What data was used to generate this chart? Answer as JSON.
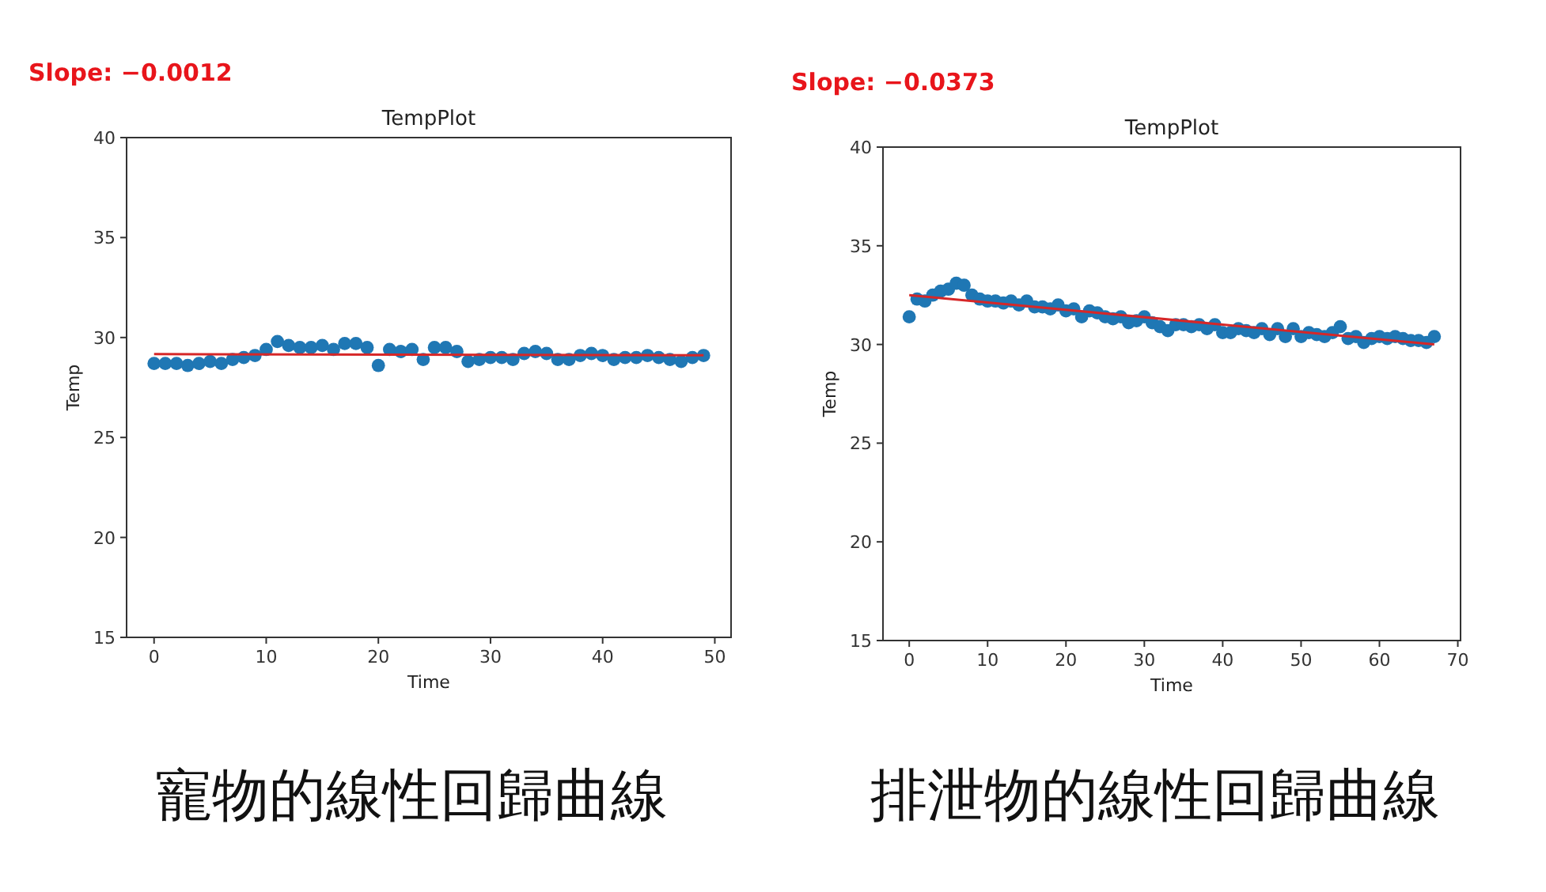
{
  "chart_data": [
    {
      "type": "scatter",
      "title": "TempPlot",
      "xlabel": "Time",
      "ylabel": "Temp",
      "annotations": [
        "Slope: −0.0012",
        "寵物的線性回歸曲線"
      ],
      "xlim": [
        -2.45,
        51.45
      ],
      "xticks": [
        0,
        10,
        20,
        30,
        40,
        50
      ],
      "ylim": [
        15,
        40
      ],
      "yticks": [
        15,
        20,
        25,
        30,
        35,
        40
      ],
      "x": [
        0,
        1,
        2,
        3,
        4,
        5,
        6,
        7,
        8,
        9,
        10,
        11,
        12,
        13,
        14,
        15,
        16,
        17,
        18,
        19,
        20,
        21,
        22,
        23,
        24,
        25,
        26,
        27,
        28,
        29,
        30,
        31,
        32,
        33,
        34,
        35,
        36,
        37,
        38,
        39,
        40,
        41,
        42,
        43,
        44,
        45,
        46,
        47,
        48,
        49
      ],
      "series": [
        {
          "marker": "circle",
          "color": "#1f77b4",
          "values": [
            28.7,
            28.7,
            28.7,
            28.6,
            28.7,
            28.8,
            28.7,
            28.9,
            29.0,
            29.1,
            29.4,
            29.8,
            29.6,
            29.5,
            29.5,
            29.6,
            29.4,
            29.7,
            29.7,
            29.5,
            28.6,
            29.4,
            29.3,
            29.4,
            28.9,
            29.5,
            29.5,
            29.3,
            28.8,
            28.9,
            29.0,
            29.0,
            28.9,
            29.2,
            29.3,
            29.2,
            28.9,
            28.9,
            29.1,
            29.2,
            29.1,
            28.9,
            29.0,
            29.0,
            29.1,
            29.0,
            28.9,
            28.8,
            29.0,
            29.1
          ]
        },
        {
          "type": "line",
          "color": "#d62728",
          "x": [
            0,
            49
          ],
          "values": [
            29.17,
            29.11
          ]
        }
      ]
    },
    {
      "type": "scatter",
      "title": "TempPlot",
      "xlabel": "Time",
      "ylabel": "Temp",
      "annotations": [
        "Slope: −0.0373",
        "排泄物的線性回歸曲線"
      ],
      "xlim": [
        -3.35,
        70.35
      ],
      "xticks": [
        0,
        10,
        20,
        30,
        40,
        50,
        60,
        70
      ],
      "ylim": [
        15,
        40
      ],
      "yticks": [
        15,
        20,
        25,
        30,
        35,
        40
      ],
      "x": [
        0,
        1,
        2,
        3,
        4,
        5,
        6,
        7,
        8,
        9,
        10,
        11,
        12,
        13,
        14,
        15,
        16,
        17,
        18,
        19,
        20,
        21,
        22,
        23,
        24,
        25,
        26,
        27,
        28,
        29,
        30,
        31,
        32,
        33,
        34,
        35,
        36,
        37,
        38,
        39,
        40,
        41,
        42,
        43,
        44,
        45,
        46,
        47,
        48,
        49,
        50,
        51,
        52,
        53,
        54,
        55,
        56,
        57,
        58,
        59,
        60,
        61,
        62,
        63,
        64,
        65,
        66,
        67
      ],
      "series": [
        {
          "marker": "circle",
          "color": "#1f77b4",
          "values": [
            31.4,
            32.3,
            32.2,
            32.5,
            32.7,
            32.8,
            33.1,
            33.0,
            32.5,
            32.3,
            32.2,
            32.2,
            32.1,
            32.2,
            32.0,
            32.2,
            31.9,
            31.9,
            31.8,
            32.0,
            31.7,
            31.8,
            31.4,
            31.7,
            31.6,
            31.4,
            31.3,
            31.4,
            31.1,
            31.2,
            31.4,
            31.1,
            30.9,
            30.7,
            31.0,
            31.0,
            30.9,
            31.0,
            30.8,
            31.0,
            30.6,
            30.6,
            30.8,
            30.7,
            30.6,
            30.8,
            30.5,
            30.8,
            30.4,
            30.8,
            30.4,
            30.6,
            30.5,
            30.4,
            30.6,
            30.9,
            30.3,
            30.4,
            30.1,
            30.3,
            30.4,
            30.3,
            30.4,
            30.3,
            30.2,
            30.2,
            30.1,
            30.4
          ]
        },
        {
          "type": "line",
          "color": "#d62728",
          "x": [
            0,
            67
          ],
          "values": [
            32.5,
            30.0
          ]
        }
      ]
    }
  ]
}
